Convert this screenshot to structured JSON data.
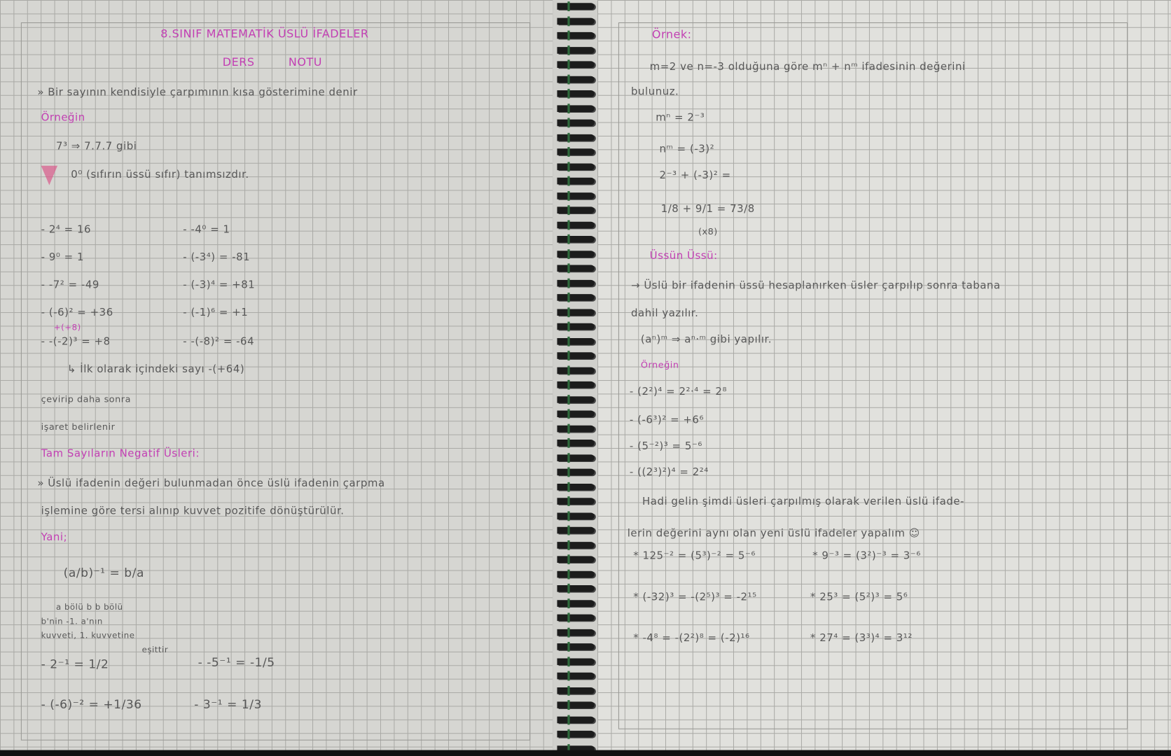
{
  "left_page": {
    "title": "8.SINIF MATEMATİK ÜSLÜ İFADELER",
    "subtitle": "DERS NOTU",
    "definition": "» Bir sayının kendisiyle çarpımının kısa gösterimine denir",
    "example_label": "Örneğin",
    "example": "7³ ⇒ 7.7.7 gibi",
    "warning": "0⁰ (sıfırın üssü sıfır) tanımsızdır.",
    "rows": [
      {
        "left": "- 2⁴ = 16",
        "right": "- -4⁰ = 1"
      },
      {
        "left": "- 9⁰ = 1",
        "right": "- (-3⁴) = -81"
      },
      {
        "left": "- -7² = -49",
        "right": "- (-3)⁴ = +81"
      },
      {
        "left": "- (-6)² = +36",
        "right": "- (-1)⁶ = +1"
      },
      {
        "left": "- -(-2)³ = +8",
        "right": "- -(-8)² = -64"
      }
    ],
    "note_aside": "+(+8)",
    "note_1": "↳ İlk olarak içindeki sayı  -(+64)",
    "note_2": "çevirip daha sonra",
    "note_3": "işaret belirlenir",
    "neg_heading": "Tam Sayıların Negatif Üsleri:",
    "neg_text_1": "» Üslü ifadenin değeri bulunmadan önce üslü ifadenin çarpma",
    "neg_text_2": "işlemine göre tersi alınıp kuvvet pozitife dönüştürülür.",
    "yani": "Yani;",
    "formula": "(a/b)⁻¹ = b/a",
    "formula_note_a": "a bölü b  b bölü",
    "formula_note_b": "b'nin -1.   a'nın",
    "formula_note_c": "kuvveti,   1. kuvvetine",
    "formula_note_d": "eşittir",
    "examples": [
      {
        "left": "- 2⁻¹ = 1/2",
        "right": "- -5⁻¹ = -1/5"
      },
      {
        "left": "- (-6)⁻² = +1/36",
        "right": "- 3⁻¹ = 1/3"
      }
    ]
  },
  "right_page": {
    "example_label": "Örnek:",
    "problem_1": "m=2 ve n=-3 olduğuna göre mⁿ + nᵐ ifadesinin değerini",
    "problem_2": "bulunuz.",
    "step_1": "mⁿ = 2⁻³",
    "step_2": "nᵐ = (-3)²",
    "step_3": "2⁻³ + (-3)² =",
    "step_4": "1/8 + 9/1 = 73/8",
    "step_4_note": "(x8)",
    "power_heading": "Üssün Üssü:",
    "power_text_1": "→ Üslü bir ifadenin üssü hesaplanırken üsler çarpılıp sonra tabana",
    "power_text_2": "dahil yazılır.",
    "power_rule": "(aⁿ)ᵐ ⇒ aⁿ·ᵐ gibi yapılır.",
    "example_label_2": "Örneğin",
    "power_examples": [
      "- (2²)⁴ = 2²·⁴ = 2⁸",
      "- (-6³)² = +6⁶",
      "- (5⁻²)³ = 5⁻⁶",
      "- ((2³)²)⁴ = 2²⁴"
    ],
    "exercise_1": "Hadi gelin şimdi üsleri çarpılmış olarak verilen üslü ifade-",
    "exercise_2": "lerin değerini aynı olan yeni üslü ifadeler yapalım ☺",
    "exercises": [
      {
        "left": "* 125⁻² = (5³)⁻² = 5⁻⁶",
        "right": "* 9⁻³ = (3²)⁻³ = 3⁻⁶"
      },
      {
        "left": "* (-32)³ = -(2⁵)³ = -2¹⁵",
        "right": "* 25³ = (5²)³ = 5⁶"
      },
      {
        "left": "* -4⁸ = -(2²)⁸ = (-2)¹⁶",
        "right": "* 27⁴ = (3³)⁴ = 3¹²"
      }
    ]
  },
  "colors": {
    "heading_ink": "#c23fb3",
    "pencil_ink": "#585858",
    "paper": "#dcdcd8",
    "grid": "#a9a9a5"
  }
}
